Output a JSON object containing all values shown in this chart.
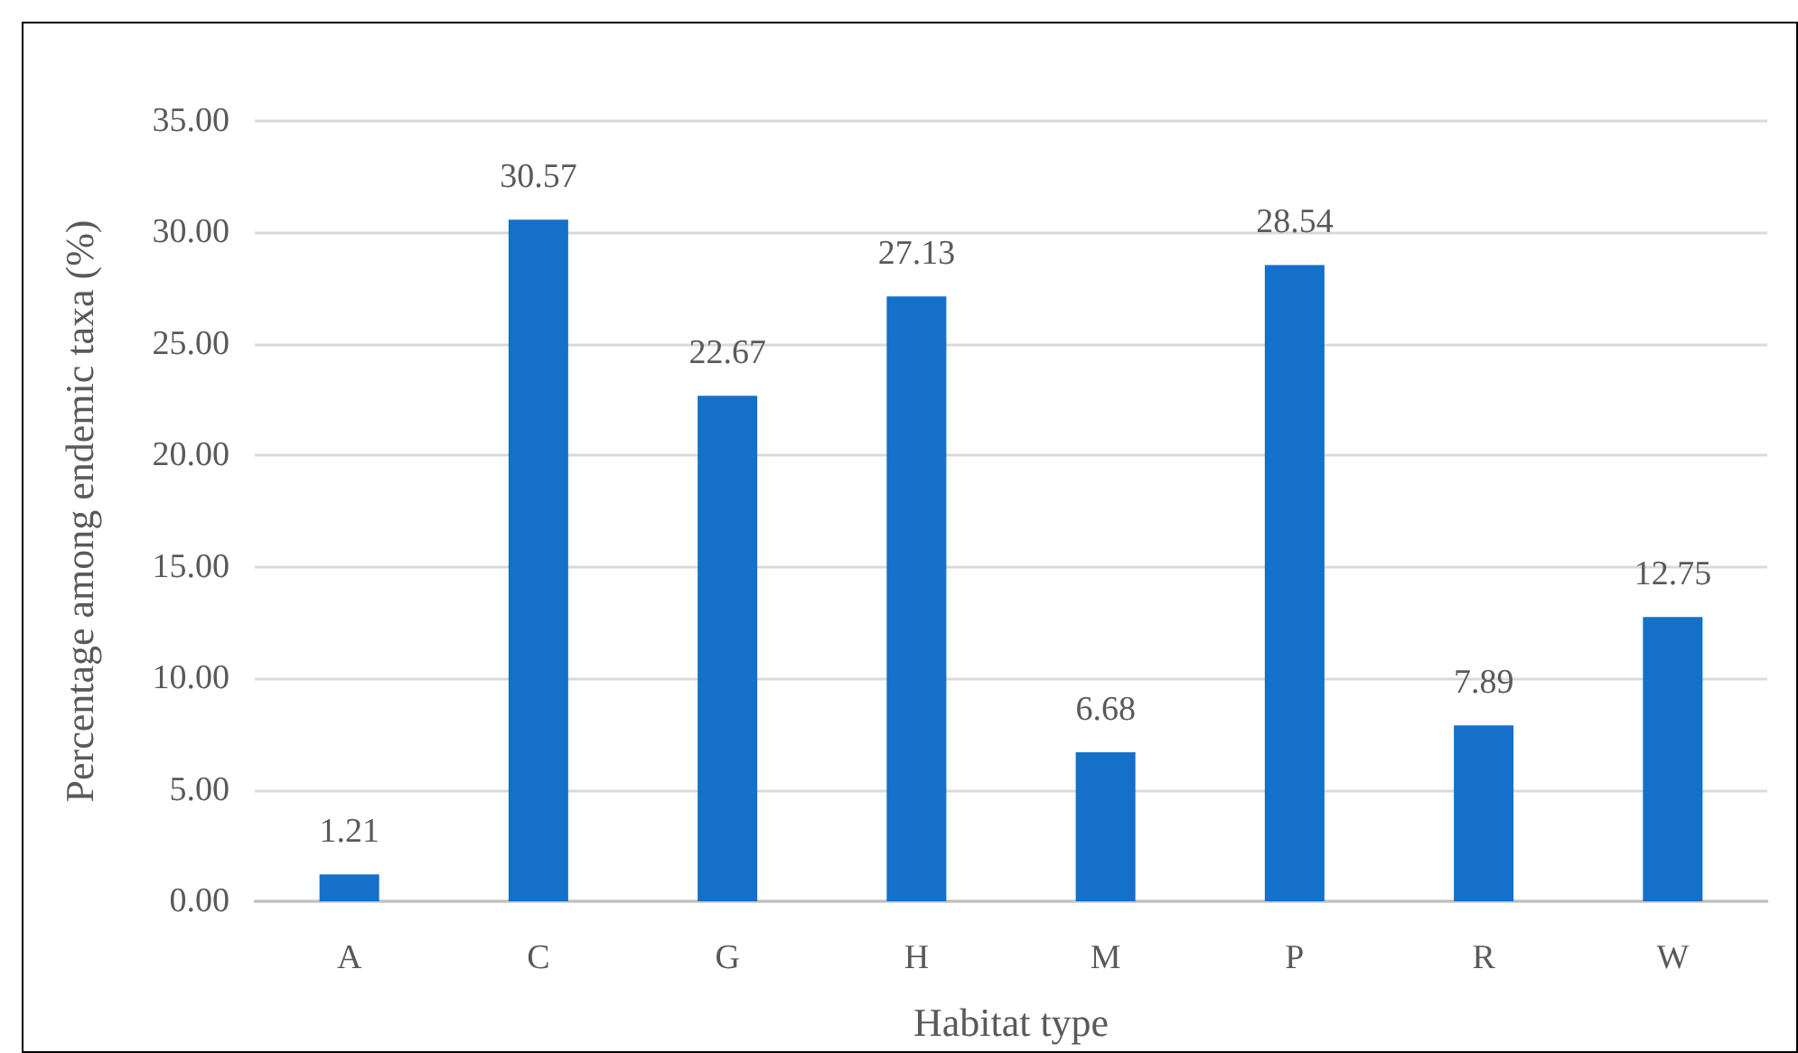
{
  "chart_data": {
    "type": "bar",
    "xlabel": "Habitat type",
    "ylabel": "Percentage among endemic taxa (%)",
    "categories": [
      "A",
      "C",
      "G",
      "H",
      "M",
      "P",
      "R",
      "W"
    ],
    "values": [
      1.21,
      30.57,
      22.67,
      27.13,
      6.68,
      28.54,
      7.89,
      12.75
    ],
    "color": "#1470c8",
    "ylim": [
      0,
      35
    ],
    "yticks": [
      {
        "value": 0,
        "label": "0.00"
      },
      {
        "value": 5,
        "label": "5.00"
      },
      {
        "value": 10,
        "label": "10.00"
      },
      {
        "value": 15,
        "label": "15.00"
      },
      {
        "value": 20,
        "label": "20.00"
      },
      {
        "value": 25,
        "label": "25.00"
      },
      {
        "value": 30,
        "label": "30.00"
      },
      {
        "value": 35,
        "label": "35.00"
      }
    ],
    "grid": "y",
    "data_labels": true
  }
}
